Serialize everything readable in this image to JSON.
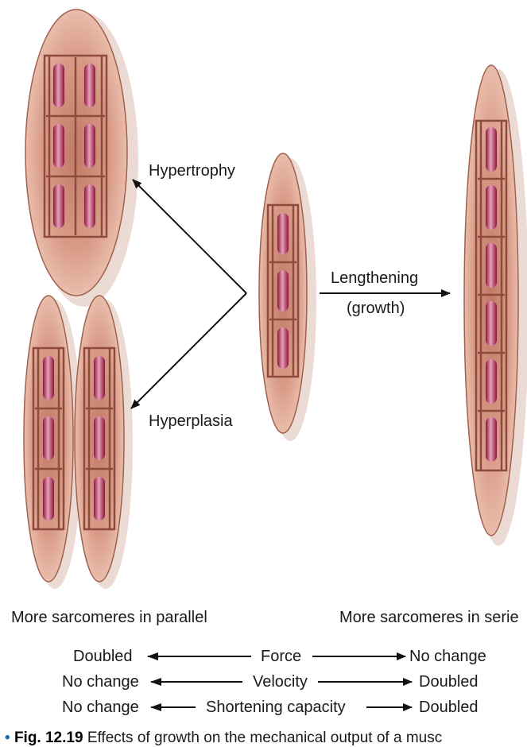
{
  "labels": {
    "hypertrophy": "Hypertrophy",
    "hyperplasia": "Hyperplasia",
    "lengthening": "Lengthening",
    "growth": "(growth)",
    "parallel": "More sarcomeres in parallel",
    "series": "More sarcomeres in serie"
  },
  "comparison": [
    {
      "left": "Doubled",
      "property": "Force",
      "right": "No change"
    },
    {
      "left": "No change",
      "property": "Velocity",
      "right": "Doubled"
    },
    {
      "left": "No change",
      "property": "Shortening capacity",
      "right": "Doubled"
    }
  ],
  "caption": {
    "bullet": "•",
    "figure": "Fig. 12.19",
    "text": "Effects of growth on the mechanical output of a musc"
  },
  "colors": {
    "fiber_edge": "#9b5a4a",
    "fiber_light": "#f0c9b8",
    "fiber_mid": "#c98a76",
    "sarcomere_frame": "#8e4a3b",
    "myofibril": "#a0204a",
    "myofibril_light": "#f3b8c8",
    "arrow": "#111111"
  }
}
